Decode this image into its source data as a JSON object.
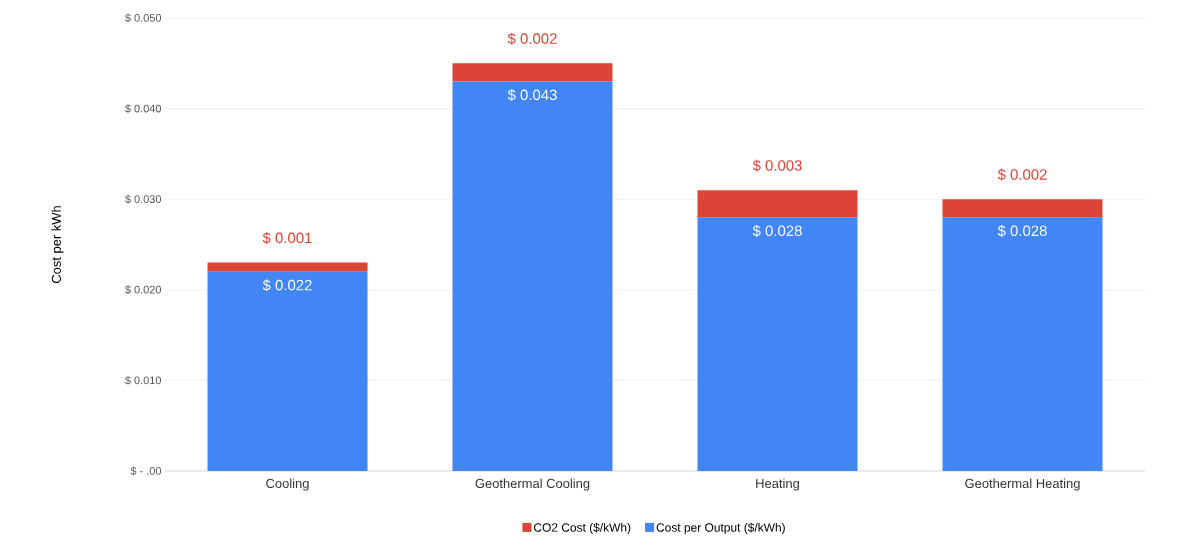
{
  "chart_data": {
    "type": "bar",
    "stacked": true,
    "ylabel": "Cost per kWh",
    "categories": [
      "Cooling",
      "Geothermal Cooling",
      "Heating",
      "Geothermal Heating"
    ],
    "series": [
      {
        "name": "Cost per Output ($/kWh)",
        "color": "#4285f4",
        "values": [
          0.022,
          0.043,
          0.028,
          0.028
        ],
        "value_labels": [
          "$ 0.022",
          "$ 0.043",
          "$ 0.028",
          "$ 0.028"
        ]
      },
      {
        "name": "CO2 Cost ($/kWh)",
        "color": "#db4437",
        "values": [
          0.001,
          0.002,
          0.003,
          0.002
        ],
        "value_labels": [
          "$ 0.001",
          "$ 0.002",
          "$ 0.003",
          "$ 0.002"
        ]
      }
    ],
    "ylim": [
      0,
      0.05
    ],
    "yticks": [
      {
        "value": 0,
        "label": "$ - .00"
      },
      {
        "value": 0.01,
        "label": "$ 0.010"
      },
      {
        "value": 0.02,
        "label": "$ 0.020"
      },
      {
        "value": 0.03,
        "label": "$ 0.030"
      },
      {
        "value": 0.04,
        "label": "$ 0.040"
      },
      {
        "value": 0.05,
        "label": "$ 0.050"
      }
    ],
    "grid": "y",
    "legend": "bottom"
  }
}
